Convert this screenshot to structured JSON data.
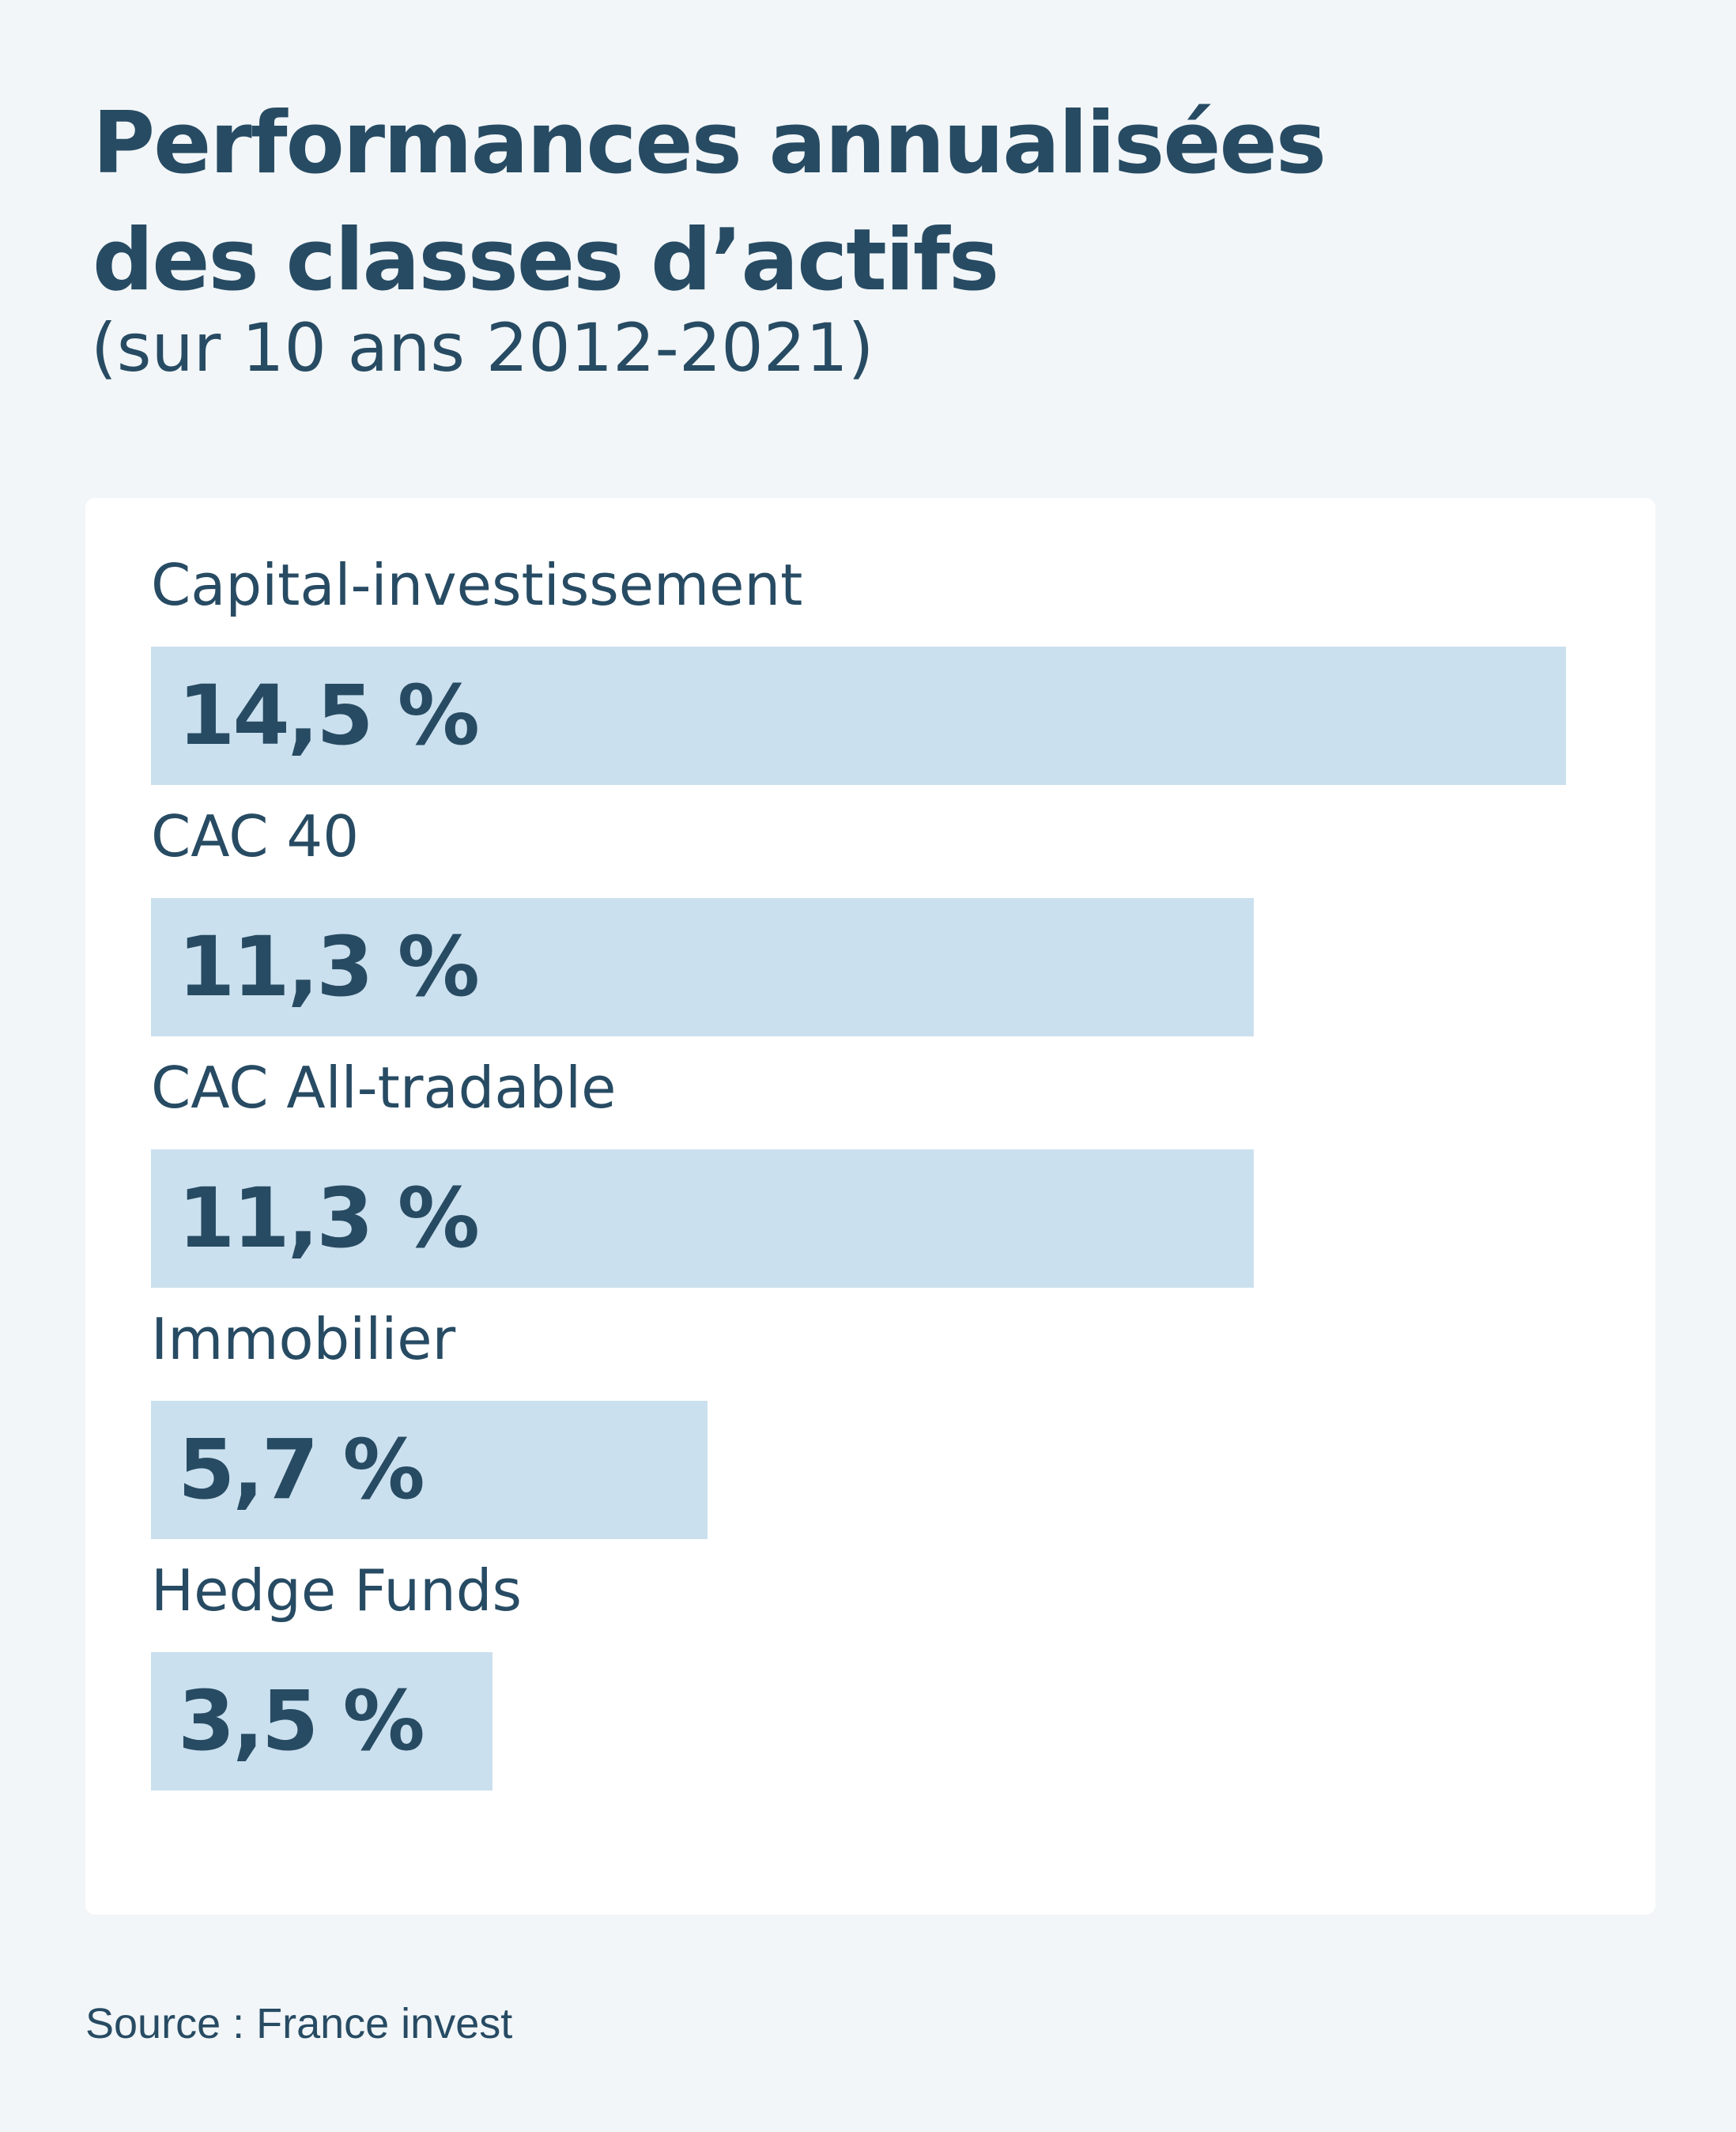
{
  "chart_data": {
    "type": "bar",
    "orientation": "horizontal",
    "title": [
      "Performances annualisées",
      "des classes d’actifs"
    ],
    "subtitle": "(sur 10 ans 2012-2021)",
    "categories": [
      "Capital-investissement",
      "CAC 40",
      "CAC All-tradable",
      "Immobilier",
      "Hedge Funds"
    ],
    "values": [
      14.5,
      11.3,
      11.3,
      5.7,
      3.5
    ],
    "value_labels": [
      "14,5 %",
      "11,3 %",
      "11,3 %",
      "5,7 %",
      "3,5 %"
    ],
    "unit": "%",
    "bar_color": "#cbe0ee",
    "text_color": "#274b63",
    "source": "Source : France invest"
  }
}
